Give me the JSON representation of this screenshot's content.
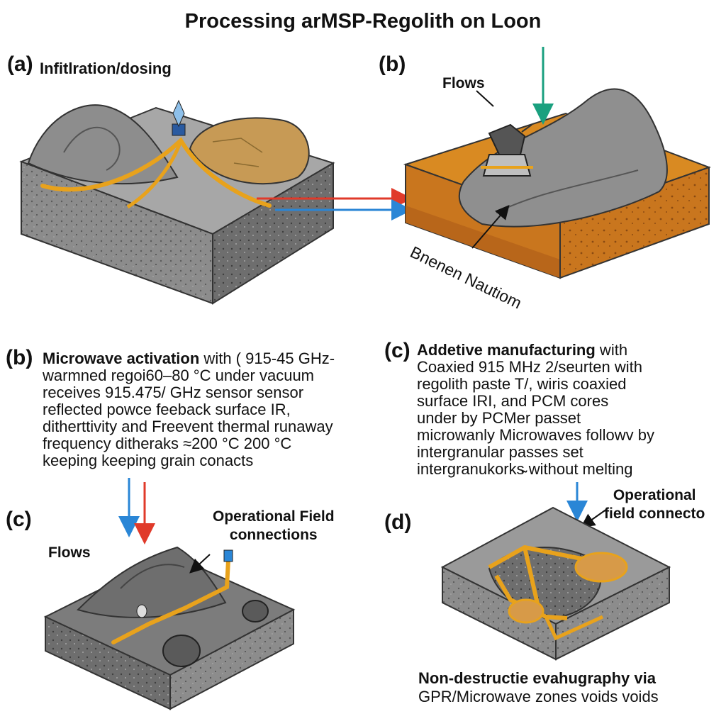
{
  "title": "Processing arMSP-Regolith on Loon",
  "panel_a": {
    "letter": "(a)",
    "title": "Infitlration/dosing"
  },
  "panel_b_top": {
    "letter": "(b)",
    "label_flows": "Flows",
    "label_rotated": "Bnenen Nautiom"
  },
  "panel_b_text": {
    "letter": "(b)",
    "heading_bold": "Microwave activation",
    "lines": [
      " with  ( 915-45 GHz-",
      "warmned regoi60–80 °C  under vacuum",
      "receives 915.475/ GHz  sensor sensor",
      "reflected powce feeback surface IR,",
      "ditherttivity and Freevent thermal runaway",
      "frequency ditheraks ≈200 °C  200 °C",
      "keeping keeping grain conacts"
    ]
  },
  "panel_c_text": {
    "letter": "(c)",
    "heading_bold": "Addetive manufacturing",
    "lines": [
      " with",
      "Coaxied 915 MHz 2/seurten with",
      "regolith paste T/, wiris coaxied",
      "surface IRI, and PCM cores",
      "under by PCMer passet",
      "microwanly Microwaves followv  by",
      "intergranular passes set",
      "intergranukorks̴̴̴ without melting"
    ]
  },
  "panel_c_bottom": {
    "letter": "(c)",
    "label_flows": "Flows",
    "label_connections": "Operational Field\nconnections"
  },
  "panel_d": {
    "letter": "(d)",
    "label_field": "Operational\nfield connecto",
    "caption_bold": "Non-destructie evahugraphy via",
    "caption": "GPR/Microwave zones  voids voids"
  },
  "colors": {
    "rock": "#8f8f8f",
    "rock_dark": "#6c6c6c",
    "channel": "#e8a21c",
    "boulder": "#c79a55",
    "soil": "#d98a22",
    "soil_dark": "#b8661a",
    "arrow_red": "#e03a2a",
    "arrow_blue": "#2a86d6",
    "arrow_teal": "#1aa07f"
  }
}
